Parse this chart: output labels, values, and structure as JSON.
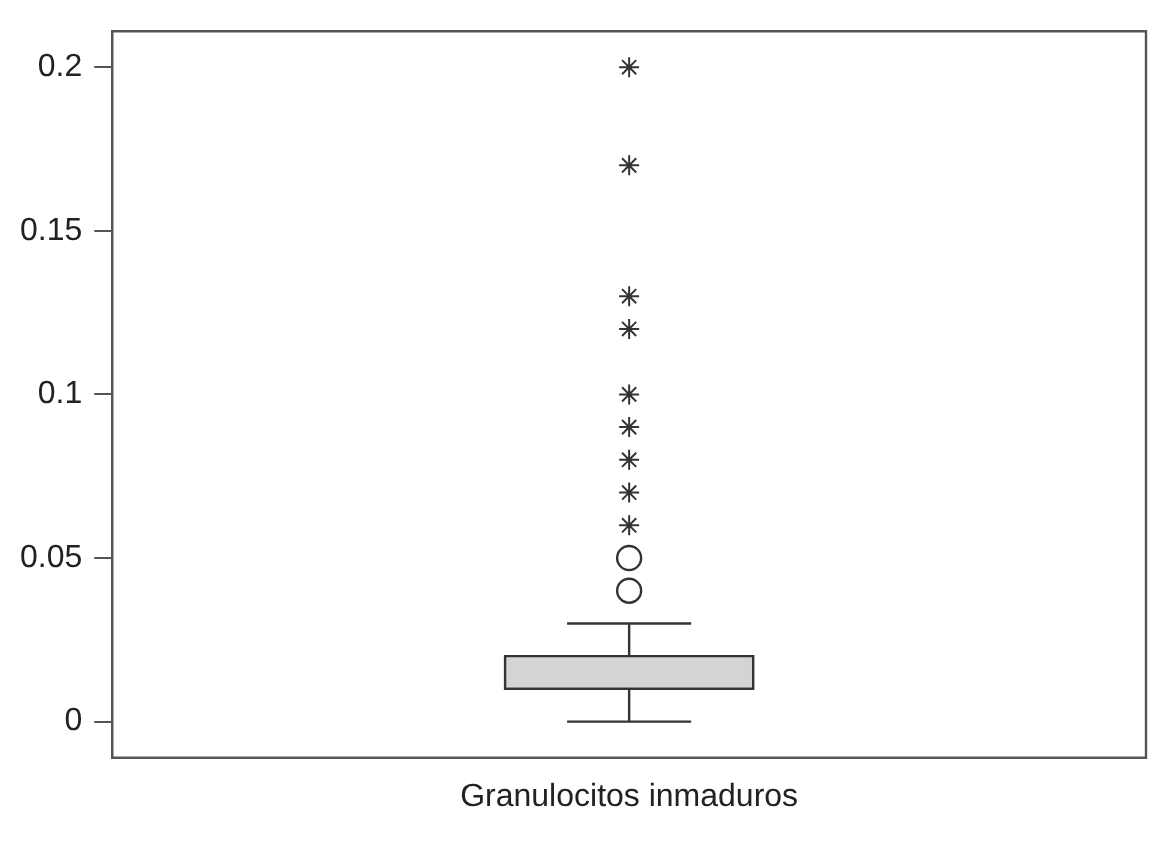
{
  "chart_data": {
    "type": "box",
    "categories": [
      "Granulocitos inmaduros"
    ],
    "series": [
      {
        "color": "#d4d4d4",
        "boxes": [
          {
            "low": 0,
            "q1": 0.01,
            "median": 0.01,
            "q3": 0.02,
            "high": 0.03,
            "outliers": [
              0.04,
              0.05
            ]
          }
        ]
      },
      {
        "type": "scatter",
        "color": "#333333",
        "marker": "cross",
        "x": [
          "Granulocitos inmaduros",
          "Granulocitos inmaduros",
          "Granulocitos inmaduros",
          "Granulocitos inmaduros",
          "Granulocitos inmaduros",
          "Granulocitos inmaduros",
          "Granulocitos inmaduros",
          "Granulocitos inmaduros",
          "Granulocitos inmaduros"
        ],
        "values": [
          0.06,
          0.07,
          0.08,
          0.09,
          0.1,
          0.12,
          0.13,
          0.17,
          0.2
        ]
      }
    ],
    "ylim": [
      -0.011,
      0.211
    ],
    "yticks": [
      0,
      0.05,
      0.1,
      0.15,
      0.2
    ],
    "grid": false,
    "legend": false
  }
}
